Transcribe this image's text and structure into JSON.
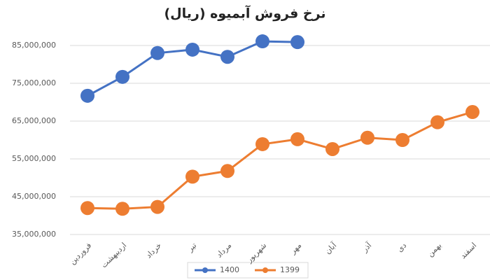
{
  "chart_data": {
    "type": "line",
    "title": "نرخ فروش آبمیوه (ریال)",
    "categories": [
      "فروردین",
      "اردیبهشت",
      "خرداد",
      "تیر",
      "مرداد",
      "شهریور",
      "مهر",
      "آبان",
      "آذر",
      "دی",
      "بهمن",
      "اسفند"
    ],
    "series": [
      {
        "name": "1400",
        "color": "#4472c4",
        "values": [
          71700000,
          76700000,
          83000000,
          83900000,
          82000000,
          86100000,
          85900000,
          null,
          null,
          null,
          null,
          null
        ]
      },
      {
        "name": "1399",
        "color": "#ed7d31",
        "values": [
          42000000,
          41800000,
          42300000,
          50300000,
          51800000,
          58900000,
          60200000,
          57600000,
          60600000,
          60000000,
          64700000,
          67400000
        ]
      }
    ],
    "ylim": [
      35000000,
      90000000
    ],
    "yticks": [
      {
        "value": 35000000,
        "label": "35,000,000"
      },
      {
        "value": 45000000,
        "label": "45,000,000"
      },
      {
        "value": 55000000,
        "label": "55,000,000"
      },
      {
        "value": 65000000,
        "label": "65,000,000"
      },
      {
        "value": 75000000,
        "label": "75,000,000"
      },
      {
        "value": 85000000,
        "label": "85,000,000"
      }
    ],
    "grid": true
  }
}
